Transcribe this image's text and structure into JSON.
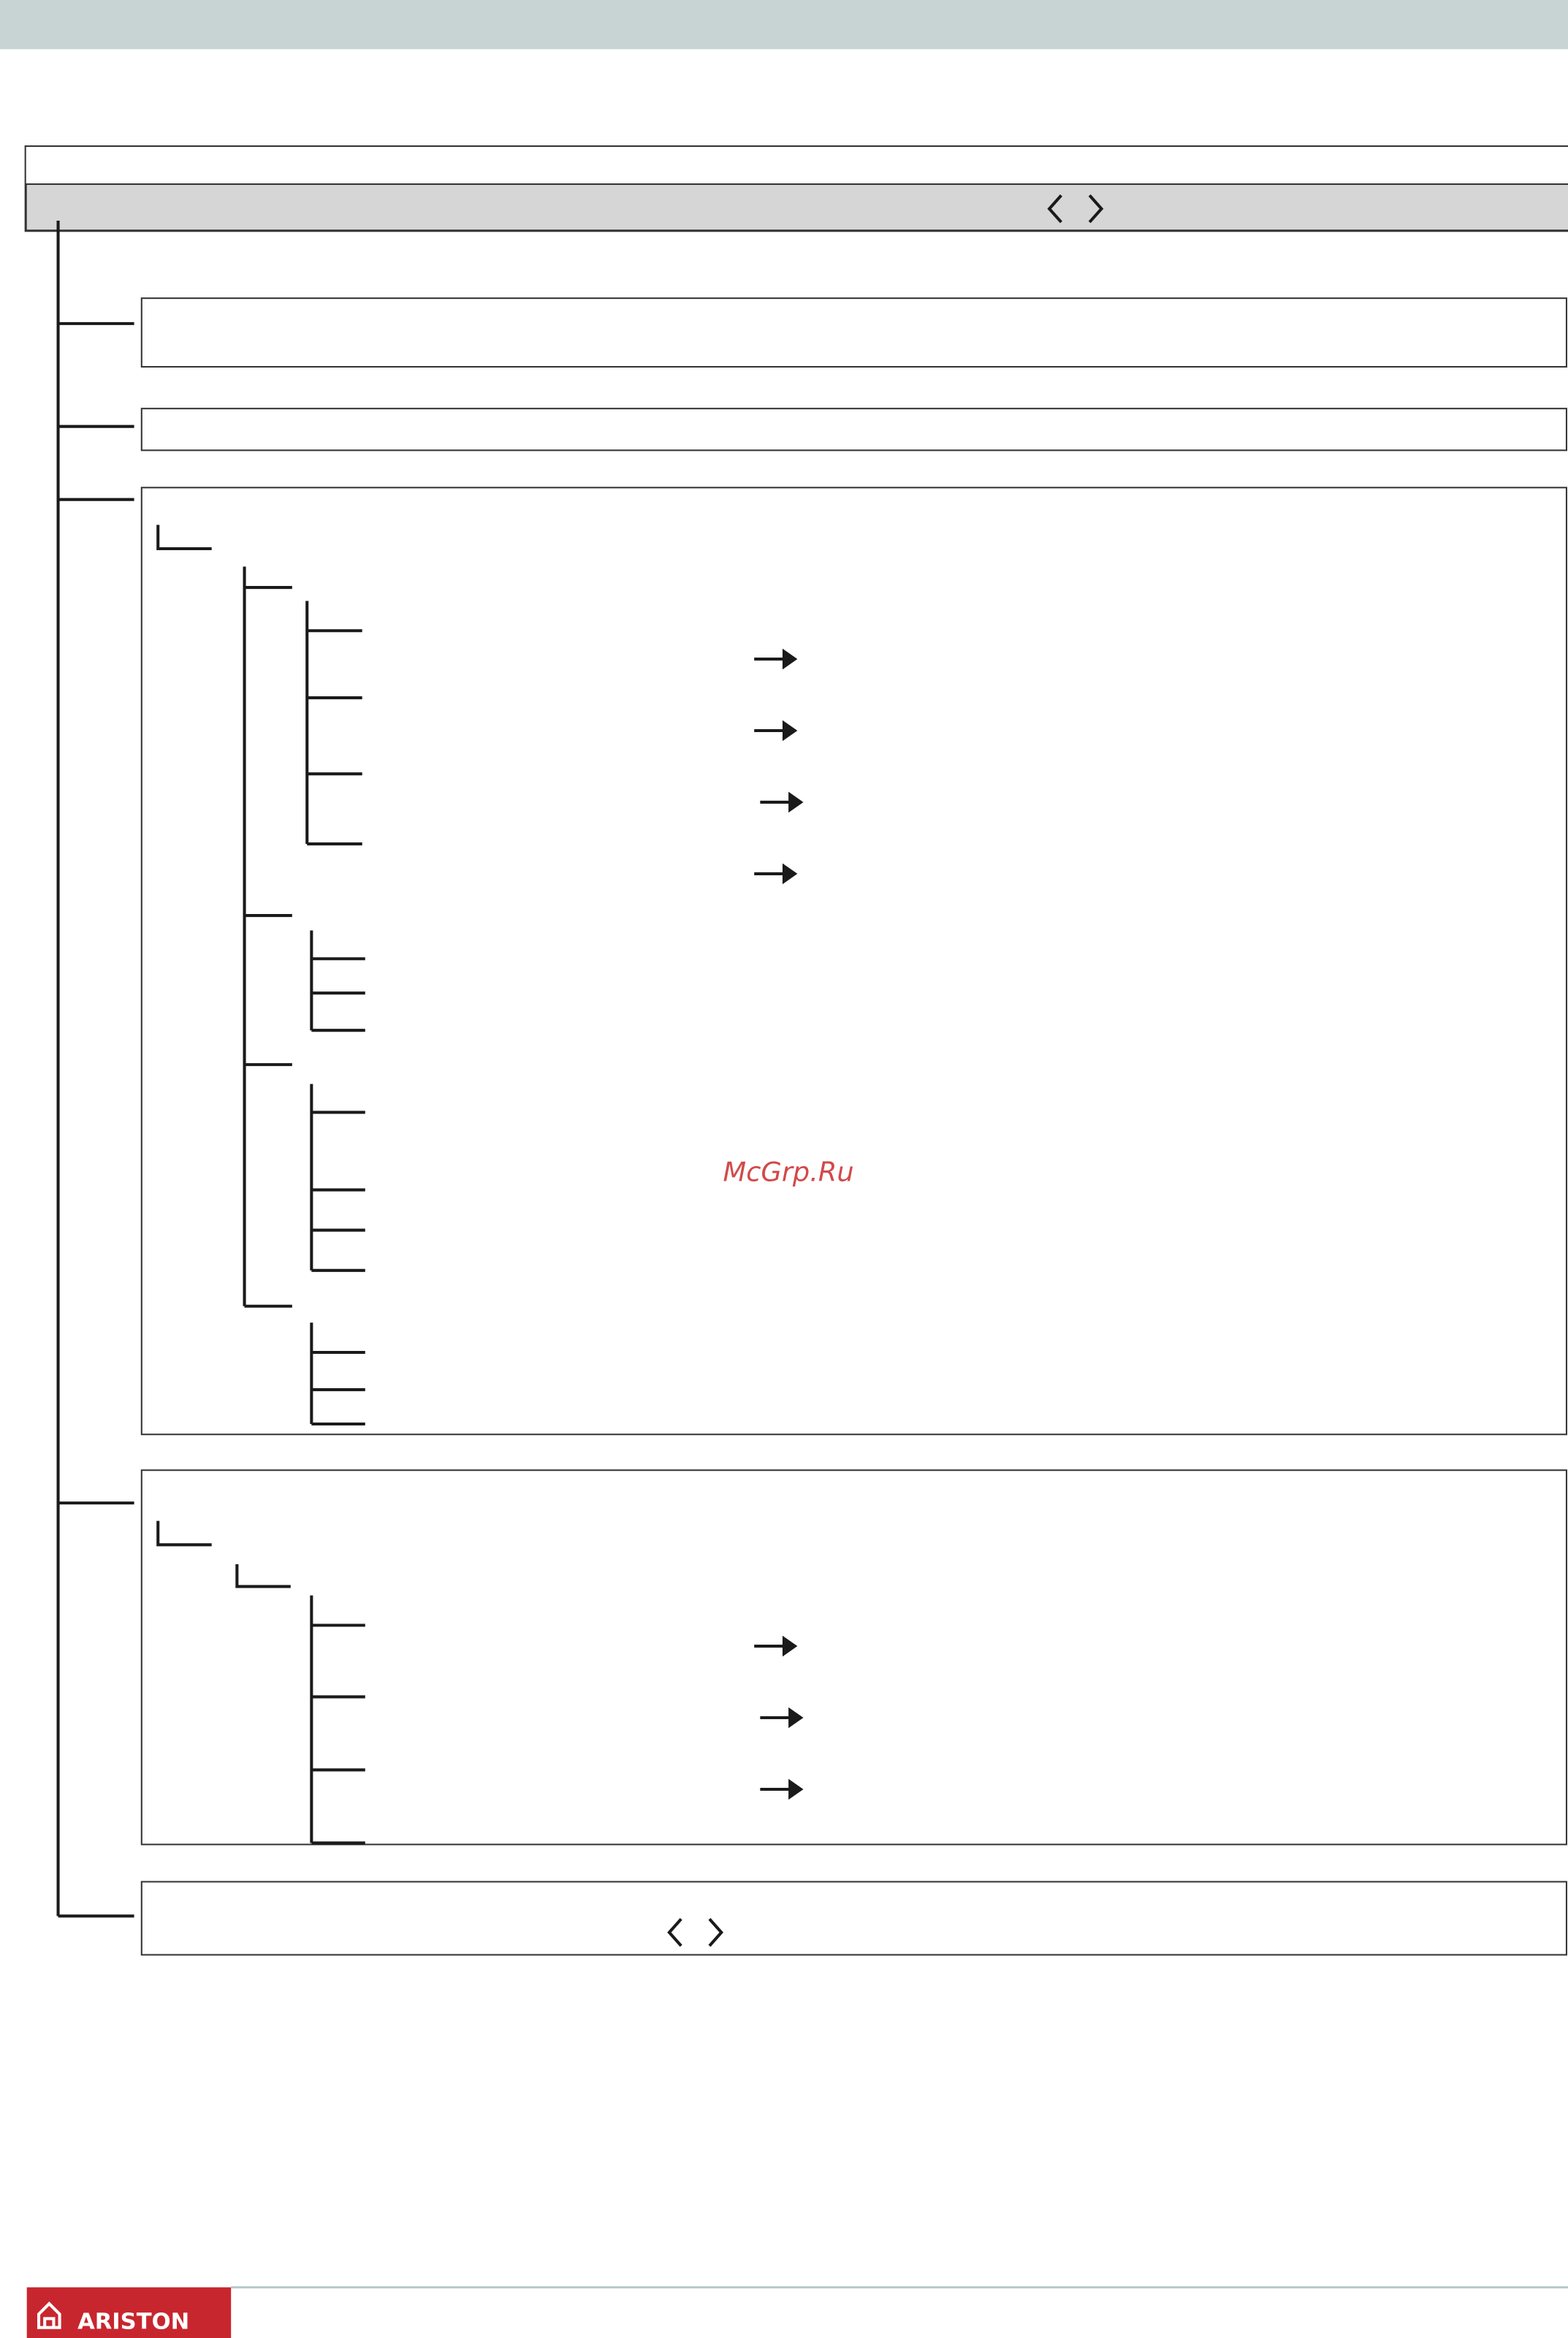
{
  "watermark": "McGrp.Ru",
  "footer": {
    "logo": "ARISTON"
  }
}
